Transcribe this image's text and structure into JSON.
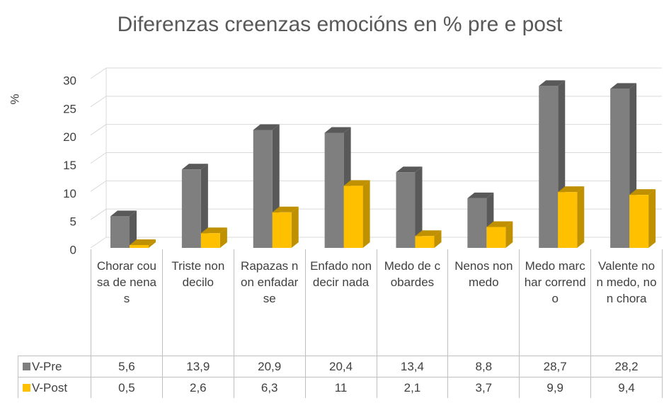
{
  "chart_data": {
    "type": "bar3d",
    "title": "Diferenzas creenzas emocións en % pre e post",
    "y_label": "%",
    "categories": [
      "Chorar cousa de nenas",
      "Triste non decilo",
      "Rapazas non enfadarse",
      "Enfado non decir nada",
      "Medo de cobardes",
      "Nenos non medo",
      "Medo marchar correndo",
      "Valente non medo, non chora"
    ],
    "series": [
      {
        "name": "V-Pre",
        "color": "#7f7f7f",
        "side": "#595959",
        "values": [
          5.6,
          13.9,
          20.9,
          20.4,
          13.4,
          8.8,
          28.7,
          28.2
        ],
        "value_labels": [
          "5,6",
          "13,9",
          "20,9",
          "20,4",
          "13,4",
          "8,8",
          "28,7",
          "28,2"
        ]
      },
      {
        "name": "V-Post",
        "color": "#ffc000",
        "side": "#bf9000",
        "values": [
          0.5,
          2.6,
          6.3,
          11,
          2.1,
          3.7,
          9.9,
          9.4
        ],
        "value_labels": [
          "0,5",
          "2,6",
          "6,3",
          "11",
          "2,1",
          "3,7",
          "9,9",
          "9,4"
        ]
      }
    ],
    "ylim": [
      0,
      30
    ],
    "yticks": [
      0,
      5,
      10,
      15,
      20,
      25,
      30
    ],
    "grid": true,
    "data_table": true
  }
}
